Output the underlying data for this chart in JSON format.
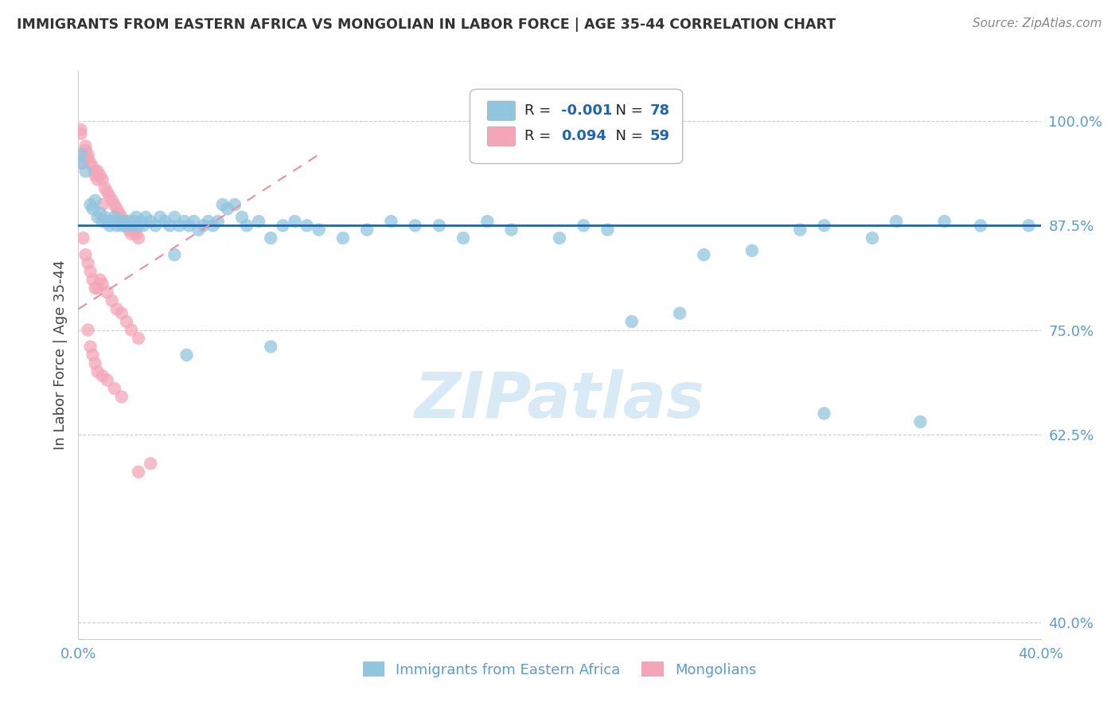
{
  "title": "IMMIGRANTS FROM EASTERN AFRICA VS MONGOLIAN IN LABOR FORCE | AGE 35-44 CORRELATION CHART",
  "source": "Source: ZipAtlas.com",
  "ylabel": "In Labor Force | Age 35-44",
  "xlim": [
    0.0,
    0.4
  ],
  "ylim": [
    0.38,
    1.06
  ],
  "yticks": [
    1.0,
    0.875,
    0.75,
    0.625,
    0.4
  ],
  "ytick_labels": [
    "100.0%",
    "87.5%",
    "75.0%",
    "62.5%",
    "40.0%"
  ],
  "xticks": [
    0.0,
    0.4
  ],
  "xtick_labels": [
    "0.0%",
    "40.0%"
  ],
  "r1_val": "-0.001",
  "n1_val": "78",
  "r2_val": "0.094",
  "n2_val": "59",
  "blue_color": "#92C5DE",
  "pink_color": "#F4A6B8",
  "blue_line_color": "#2166AC",
  "pink_line_color": "#E8909A",
  "accent_color": "#2166AC",
  "watermark": "ZIPatlas",
  "title_color": "#333333",
  "axis_label_color": "#444444",
  "tick_color": "#5B9BD5",
  "grid_color": "#CCCCCC",
  "blue_line_y": 0.875,
  "pink_line_x0": 0.0,
  "pink_line_y0": 0.775,
  "pink_line_x1": 0.1,
  "pink_line_y1": 0.96,
  "blue_scatter": [
    [
      0.001,
      0.96
    ],
    [
      0.001,
      0.95
    ],
    [
      0.003,
      0.94
    ],
    [
      0.005,
      0.9
    ],
    [
      0.006,
      0.895
    ],
    [
      0.007,
      0.905
    ],
    [
      0.008,
      0.885
    ],
    [
      0.009,
      0.89
    ],
    [
      0.01,
      0.88
    ],
    [
      0.011,
      0.885
    ],
    [
      0.012,
      0.88
    ],
    [
      0.013,
      0.875
    ],
    [
      0.014,
      0.88
    ],
    [
      0.015,
      0.885
    ],
    [
      0.016,
      0.875
    ],
    [
      0.017,
      0.88
    ],
    [
      0.018,
      0.875
    ],
    [
      0.019,
      0.88
    ],
    [
      0.02,
      0.875
    ],
    [
      0.021,
      0.88
    ],
    [
      0.022,
      0.875
    ],
    [
      0.023,
      0.88
    ],
    [
      0.024,
      0.885
    ],
    [
      0.025,
      0.875
    ],
    [
      0.026,
      0.88
    ],
    [
      0.027,
      0.875
    ],
    [
      0.028,
      0.885
    ],
    [
      0.03,
      0.88
    ],
    [
      0.032,
      0.875
    ],
    [
      0.034,
      0.885
    ],
    [
      0.036,
      0.88
    ],
    [
      0.038,
      0.875
    ],
    [
      0.04,
      0.885
    ],
    [
      0.042,
      0.875
    ],
    [
      0.044,
      0.88
    ],
    [
      0.046,
      0.875
    ],
    [
      0.048,
      0.88
    ],
    [
      0.05,
      0.87
    ],
    [
      0.052,
      0.875
    ],
    [
      0.054,
      0.88
    ],
    [
      0.056,
      0.875
    ],
    [
      0.058,
      0.88
    ],
    [
      0.06,
      0.9
    ],
    [
      0.062,
      0.895
    ],
    [
      0.065,
      0.9
    ],
    [
      0.068,
      0.885
    ],
    [
      0.07,
      0.875
    ],
    [
      0.075,
      0.88
    ],
    [
      0.08,
      0.86
    ],
    [
      0.085,
      0.875
    ],
    [
      0.09,
      0.88
    ],
    [
      0.095,
      0.875
    ],
    [
      0.1,
      0.87
    ],
    [
      0.11,
      0.86
    ],
    [
      0.12,
      0.87
    ],
    [
      0.13,
      0.88
    ],
    [
      0.14,
      0.875
    ],
    [
      0.15,
      0.875
    ],
    [
      0.16,
      0.86
    ],
    [
      0.17,
      0.88
    ],
    [
      0.18,
      0.87
    ],
    [
      0.2,
      0.86
    ],
    [
      0.21,
      0.875
    ],
    [
      0.22,
      0.87
    ],
    [
      0.23,
      0.76
    ],
    [
      0.25,
      0.77
    ],
    [
      0.26,
      0.84
    ],
    [
      0.04,
      0.84
    ],
    [
      0.045,
      0.72
    ],
    [
      0.08,
      0.73
    ],
    [
      0.3,
      0.87
    ],
    [
      0.31,
      0.875
    ],
    [
      0.33,
      0.86
    ],
    [
      0.35,
      0.64
    ],
    [
      0.375,
      0.875
    ],
    [
      0.395,
      0.875
    ],
    [
      0.28,
      0.845
    ],
    [
      0.31,
      0.65
    ],
    [
      0.34,
      0.88
    ],
    [
      0.36,
      0.88
    ]
  ],
  "pink_scatter": [
    [
      0.001,
      0.99
    ],
    [
      0.001,
      0.985
    ],
    [
      0.002,
      0.96
    ],
    [
      0.002,
      0.95
    ],
    [
      0.003,
      0.97
    ],
    [
      0.003,
      0.965
    ],
    [
      0.004,
      0.96
    ],
    [
      0.004,
      0.955
    ],
    [
      0.005,
      0.95
    ],
    [
      0.006,
      0.945
    ],
    [
      0.007,
      0.94
    ],
    [
      0.007,
      0.935
    ],
    [
      0.008,
      0.94
    ],
    [
      0.008,
      0.93
    ],
    [
      0.009,
      0.935
    ],
    [
      0.01,
      0.93
    ],
    [
      0.01,
      0.9
    ],
    [
      0.011,
      0.92
    ],
    [
      0.012,
      0.915
    ],
    [
      0.013,
      0.91
    ],
    [
      0.014,
      0.905
    ],
    [
      0.015,
      0.9
    ],
    [
      0.016,
      0.895
    ],
    [
      0.017,
      0.89
    ],
    [
      0.018,
      0.885
    ],
    [
      0.019,
      0.88
    ],
    [
      0.02,
      0.875
    ],
    [
      0.021,
      0.87
    ],
    [
      0.022,
      0.865
    ],
    [
      0.023,
      0.87
    ],
    [
      0.024,
      0.865
    ],
    [
      0.025,
      0.86
    ],
    [
      0.002,
      0.86
    ],
    [
      0.003,
      0.84
    ],
    [
      0.004,
      0.83
    ],
    [
      0.005,
      0.82
    ],
    [
      0.006,
      0.81
    ],
    [
      0.007,
      0.8
    ],
    [
      0.008,
      0.8
    ],
    [
      0.009,
      0.81
    ],
    [
      0.01,
      0.805
    ],
    [
      0.012,
      0.795
    ],
    [
      0.014,
      0.785
    ],
    [
      0.016,
      0.775
    ],
    [
      0.018,
      0.77
    ],
    [
      0.02,
      0.76
    ],
    [
      0.022,
      0.75
    ],
    [
      0.025,
      0.74
    ],
    [
      0.004,
      0.75
    ],
    [
      0.005,
      0.73
    ],
    [
      0.006,
      0.72
    ],
    [
      0.007,
      0.71
    ],
    [
      0.008,
      0.7
    ],
    [
      0.01,
      0.695
    ],
    [
      0.012,
      0.69
    ],
    [
      0.015,
      0.68
    ],
    [
      0.018,
      0.67
    ],
    [
      0.03,
      0.59
    ],
    [
      0.025,
      0.58
    ]
  ]
}
